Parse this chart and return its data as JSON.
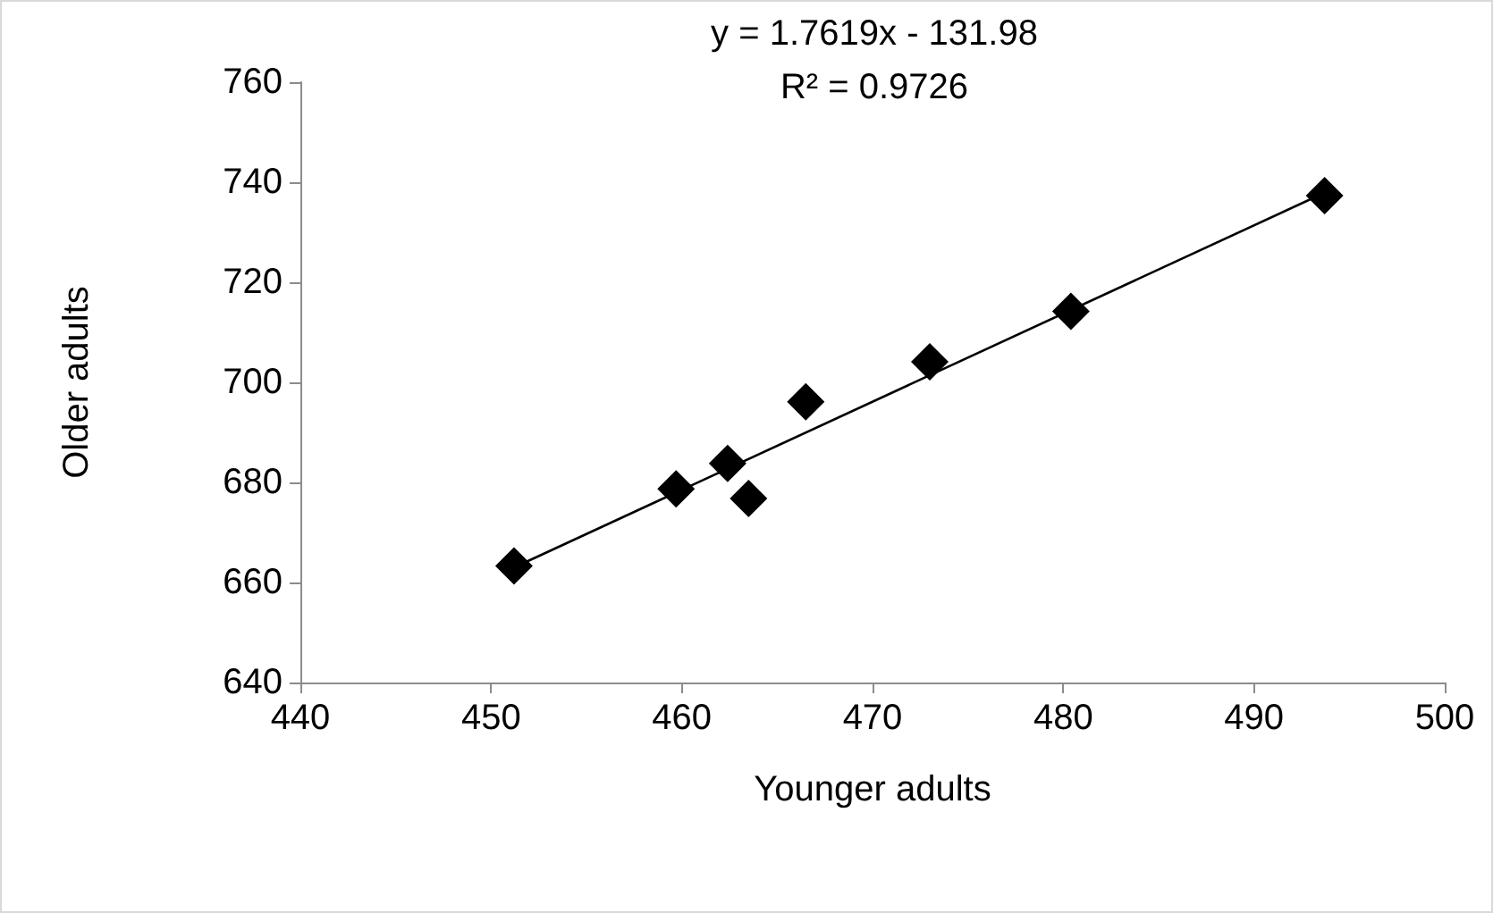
{
  "chart_data": {
    "type": "scatter",
    "xlabel": "Younger adults",
    "ylabel": "Older adults",
    "annotations": [
      "y = 1.7619x - 131.98",
      "R² = 0.9726"
    ],
    "series": [
      {
        "color": "#000000",
        "marker": "diamond",
        "x": [
          451.2,
          459.7,
          462.4,
          463.5,
          466.5,
          473.0,
          480.4,
          493.7
        ],
        "values": [
          663.3,
          678.7,
          683.8,
          676.8,
          696.1,
          704.1,
          714.2,
          737.3
        ]
      },
      {
        "type": "line",
        "color": "#000000",
        "line_style": "solid",
        "x": [
          451.2,
          493.7
        ],
        "values": [
          663.0,
          737.9
        ]
      }
    ],
    "xlim": [
      440,
      500
    ],
    "xticks": [
      440,
      450,
      460,
      470,
      480,
      490,
      500
    ],
    "ylim": [
      640,
      760
    ],
    "yticks": [
      640,
      660,
      680,
      700,
      720,
      740,
      760
    ],
    "grid": false
  }
}
